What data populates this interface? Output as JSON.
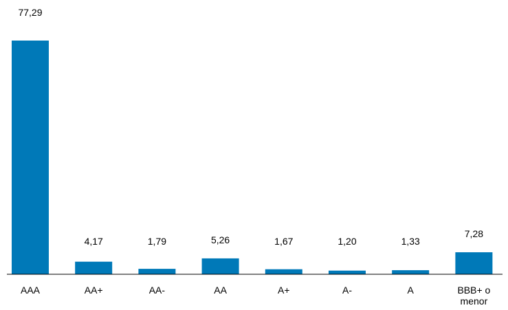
{
  "chart_data": {
    "type": "bar",
    "categories": [
      "AAA",
      "AA+",
      "AA-",
      "AA",
      "A+",
      "A-",
      "A",
      "BBB+ o menor"
    ],
    "category_label_lines": [
      [
        "AAA"
      ],
      [
        "AA+"
      ],
      [
        "AA-"
      ],
      [
        "AA"
      ],
      [
        "A+"
      ],
      [
        "A-"
      ],
      [
        "A"
      ],
      [
        "BBB+ o",
        "menor"
      ]
    ],
    "values": [
      77.29,
      4.17,
      1.79,
      5.26,
      1.67,
      1.2,
      1.33,
      7.28
    ],
    "value_labels": [
      "77,29",
      "4,17",
      "1,79",
      "5,26",
      "1,67",
      "1,20",
      "1,33",
      "7,28"
    ],
    "title": "",
    "xlabel": "",
    "ylabel": "",
    "ylim": [
      0,
      77.29
    ],
    "grid": false,
    "legend": "none",
    "bar_color": "#0079b8",
    "axis_color": "#000000"
  }
}
